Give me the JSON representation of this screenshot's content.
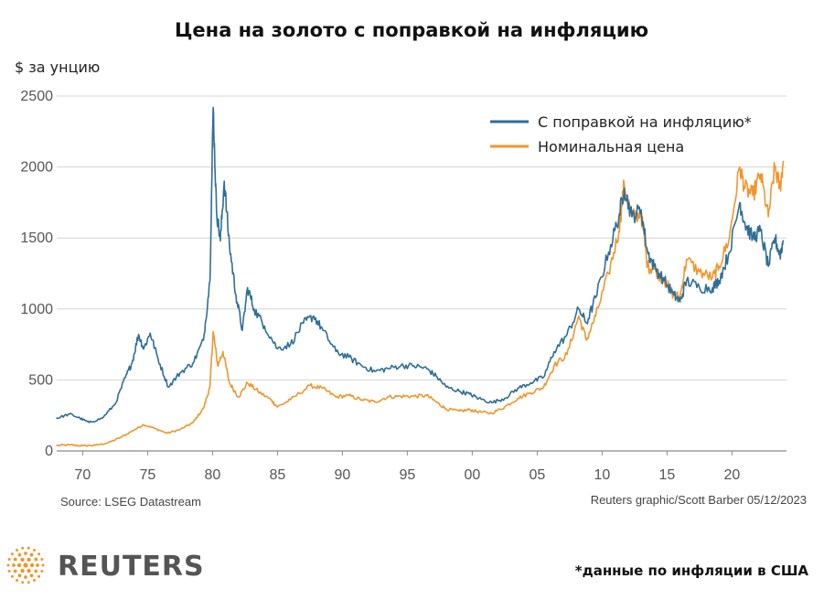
{
  "chart_data": {
    "type": "line",
    "title": "Цена на золото с поправкой на инфляцию",
    "ylabel": "$ за унцию",
    "ylim": [
      0,
      2500
    ],
    "yticks": [
      "0",
      "500",
      "1000",
      "1500",
      "2000",
      "2500"
    ],
    "xlim": [
      1968,
      2024.2
    ],
    "xticks": [
      {
        "x": 1970,
        "label": "70"
      },
      {
        "x": 1975,
        "label": "75"
      },
      {
        "x": 1980,
        "label": "80"
      },
      {
        "x": 1985,
        "label": "85"
      },
      {
        "x": 1990,
        "label": "90"
      },
      {
        "x": 1995,
        "label": "95"
      },
      {
        "x": 2000,
        "label": "00"
      },
      {
        "x": 2005,
        "label": "05"
      },
      {
        "x": 2010,
        "label": "10"
      },
      {
        "x": 2015,
        "label": "15"
      },
      {
        "x": 2020,
        "label": "20"
      }
    ],
    "grid": true,
    "legend_position": "top-right",
    "series": [
      {
        "name": "С поправкой на инфляцию*",
        "color": "#2e6e96",
        "points": [
          [
            1968.0,
            230
          ],
          [
            1969.0,
            260
          ],
          [
            1969.8,
            230
          ],
          [
            1970.5,
            200
          ],
          [
            1971.5,
            230
          ],
          [
            1972.5,
            330
          ],
          [
            1973.3,
            520
          ],
          [
            1973.8,
            620
          ],
          [
            1974.3,
            820
          ],
          [
            1974.7,
            720
          ],
          [
            1975.2,
            830
          ],
          [
            1975.8,
            650
          ],
          [
            1976.6,
            450
          ],
          [
            1977.5,
            550
          ],
          [
            1978.5,
            620
          ],
          [
            1979.3,
            780
          ],
          [
            1979.8,
            1200
          ],
          [
            1980.05,
            2420
          ],
          [
            1980.3,
            1700
          ],
          [
            1980.6,
            1480
          ],
          [
            1980.9,
            1900
          ],
          [
            1981.3,
            1450
          ],
          [
            1981.8,
            1100
          ],
          [
            1982.3,
            850
          ],
          [
            1982.7,
            1150
          ],
          [
            1983.2,
            1000
          ],
          [
            1984.0,
            880
          ],
          [
            1985.0,
            720
          ],
          [
            1986.0,
            750
          ],
          [
            1987.0,
            900
          ],
          [
            1987.8,
            950
          ],
          [
            1988.5,
            850
          ],
          [
            1989.5,
            700
          ],
          [
            1990.5,
            660
          ],
          [
            1991.5,
            600
          ],
          [
            1992.5,
            560
          ],
          [
            1993.5,
            580
          ],
          [
            1994.5,
            600
          ],
          [
            1995.5,
            600
          ],
          [
            1996.5,
            580
          ],
          [
            1997.3,
            520
          ],
          [
            1998.0,
            450
          ],
          [
            1999.0,
            420
          ],
          [
            1999.8,
            400
          ],
          [
            2000.5,
            370
          ],
          [
            2001.5,
            340
          ],
          [
            2002.5,
            370
          ],
          [
            2003.5,
            440
          ],
          [
            2004.5,
            480
          ],
          [
            2005.5,
            520
          ],
          [
            2006.3,
            700
          ],
          [
            2007.3,
            820
          ],
          [
            2008.2,
            1000
          ],
          [
            2008.8,
            900
          ],
          [
            2009.5,
            1080
          ],
          [
            2010.5,
            1400
          ],
          [
            2011.3,
            1650
          ],
          [
            2011.7,
            1850
          ],
          [
            2012.3,
            1650
          ],
          [
            2013.0,
            1700
          ],
          [
            2013.5,
            1400
          ],
          [
            2014.0,
            1300
          ],
          [
            2014.8,
            1200
          ],
          [
            2015.5,
            1100
          ],
          [
            2016.0,
            1050
          ],
          [
            2016.5,
            1200
          ],
          [
            2017.5,
            1150
          ],
          [
            2018.5,
            1150
          ],
          [
            2019.0,
            1200
          ],
          [
            2019.8,
            1400
          ],
          [
            2020.6,
            1750
          ],
          [
            2021.0,
            1600
          ],
          [
            2021.6,
            1500
          ],
          [
            2022.2,
            1550
          ],
          [
            2022.8,
            1300
          ],
          [
            2023.3,
            1500
          ],
          [
            2023.7,
            1380
          ],
          [
            2023.95,
            1480
          ]
        ]
      },
      {
        "name": "Номинальная цена",
        "color": "#f0962d",
        "points": [
          [
            1968.0,
            38
          ],
          [
            1969.0,
            42
          ],
          [
            1970.0,
            36
          ],
          [
            1971.0,
            40
          ],
          [
            1972.0,
            58
          ],
          [
            1973.0,
            98
          ],
          [
            1974.0,
            150
          ],
          [
            1974.7,
            185
          ],
          [
            1975.5,
            160
          ],
          [
            1976.5,
            125
          ],
          [
            1977.5,
            150
          ],
          [
            1978.5,
            200
          ],
          [
            1979.3,
            300
          ],
          [
            1979.8,
            450
          ],
          [
            1980.05,
            840
          ],
          [
            1980.4,
            600
          ],
          [
            1980.8,
            700
          ],
          [
            1981.3,
            480
          ],
          [
            1982.0,
            380
          ],
          [
            1982.7,
            480
          ],
          [
            1983.5,
            420
          ],
          [
            1984.5,
            360
          ],
          [
            1985.0,
            310
          ],
          [
            1986.0,
            360
          ],
          [
            1987.5,
            460
          ],
          [
            1988.5,
            440
          ],
          [
            1989.5,
            380
          ],
          [
            1990.5,
            390
          ],
          [
            1991.5,
            360
          ],
          [
            1992.5,
            345
          ],
          [
            1993.5,
            380
          ],
          [
            1994.5,
            385
          ],
          [
            1995.5,
            385
          ],
          [
            1996.5,
            390
          ],
          [
            1997.3,
            340
          ],
          [
            1998.0,
            295
          ],
          [
            1999.0,
            280
          ],
          [
            1999.8,
            290
          ],
          [
            2000.5,
            275
          ],
          [
            2001.5,
            265
          ],
          [
            2002.5,
            310
          ],
          [
            2003.5,
            370
          ],
          [
            2004.5,
            410
          ],
          [
            2005.5,
            450
          ],
          [
            2006.3,
            600
          ],
          [
            2007.3,
            680
          ],
          [
            2008.2,
            950
          ],
          [
            2008.8,
            780
          ],
          [
            2009.5,
            950
          ],
          [
            2010.5,
            1250
          ],
          [
            2011.3,
            1550
          ],
          [
            2011.7,
            1880
          ],
          [
            2012.3,
            1650
          ],
          [
            2013.0,
            1670
          ],
          [
            2013.5,
            1300
          ],
          [
            2014.0,
            1280
          ],
          [
            2014.8,
            1200
          ],
          [
            2015.5,
            1100
          ],
          [
            2016.0,
            1080
          ],
          [
            2016.5,
            1350
          ],
          [
            2017.5,
            1260
          ],
          [
            2018.5,
            1220
          ],
          [
            2019.0,
            1300
          ],
          [
            2019.8,
            1500
          ],
          [
            2020.6,
            2000
          ],
          [
            2021.0,
            1850
          ],
          [
            2021.6,
            1800
          ],
          [
            2022.2,
            1950
          ],
          [
            2022.8,
            1650
          ],
          [
            2023.3,
            2000
          ],
          [
            2023.7,
            1850
          ],
          [
            2023.95,
            2040
          ]
        ]
      }
    ]
  },
  "source": "Source: LSEG Datastream",
  "credit": "Reuters graphic/Scott Barber 05/12/2023",
  "footnote": "*данные по инфляции в США",
  "brand": {
    "name": "REUTERS",
    "color": "#f0962d"
  }
}
